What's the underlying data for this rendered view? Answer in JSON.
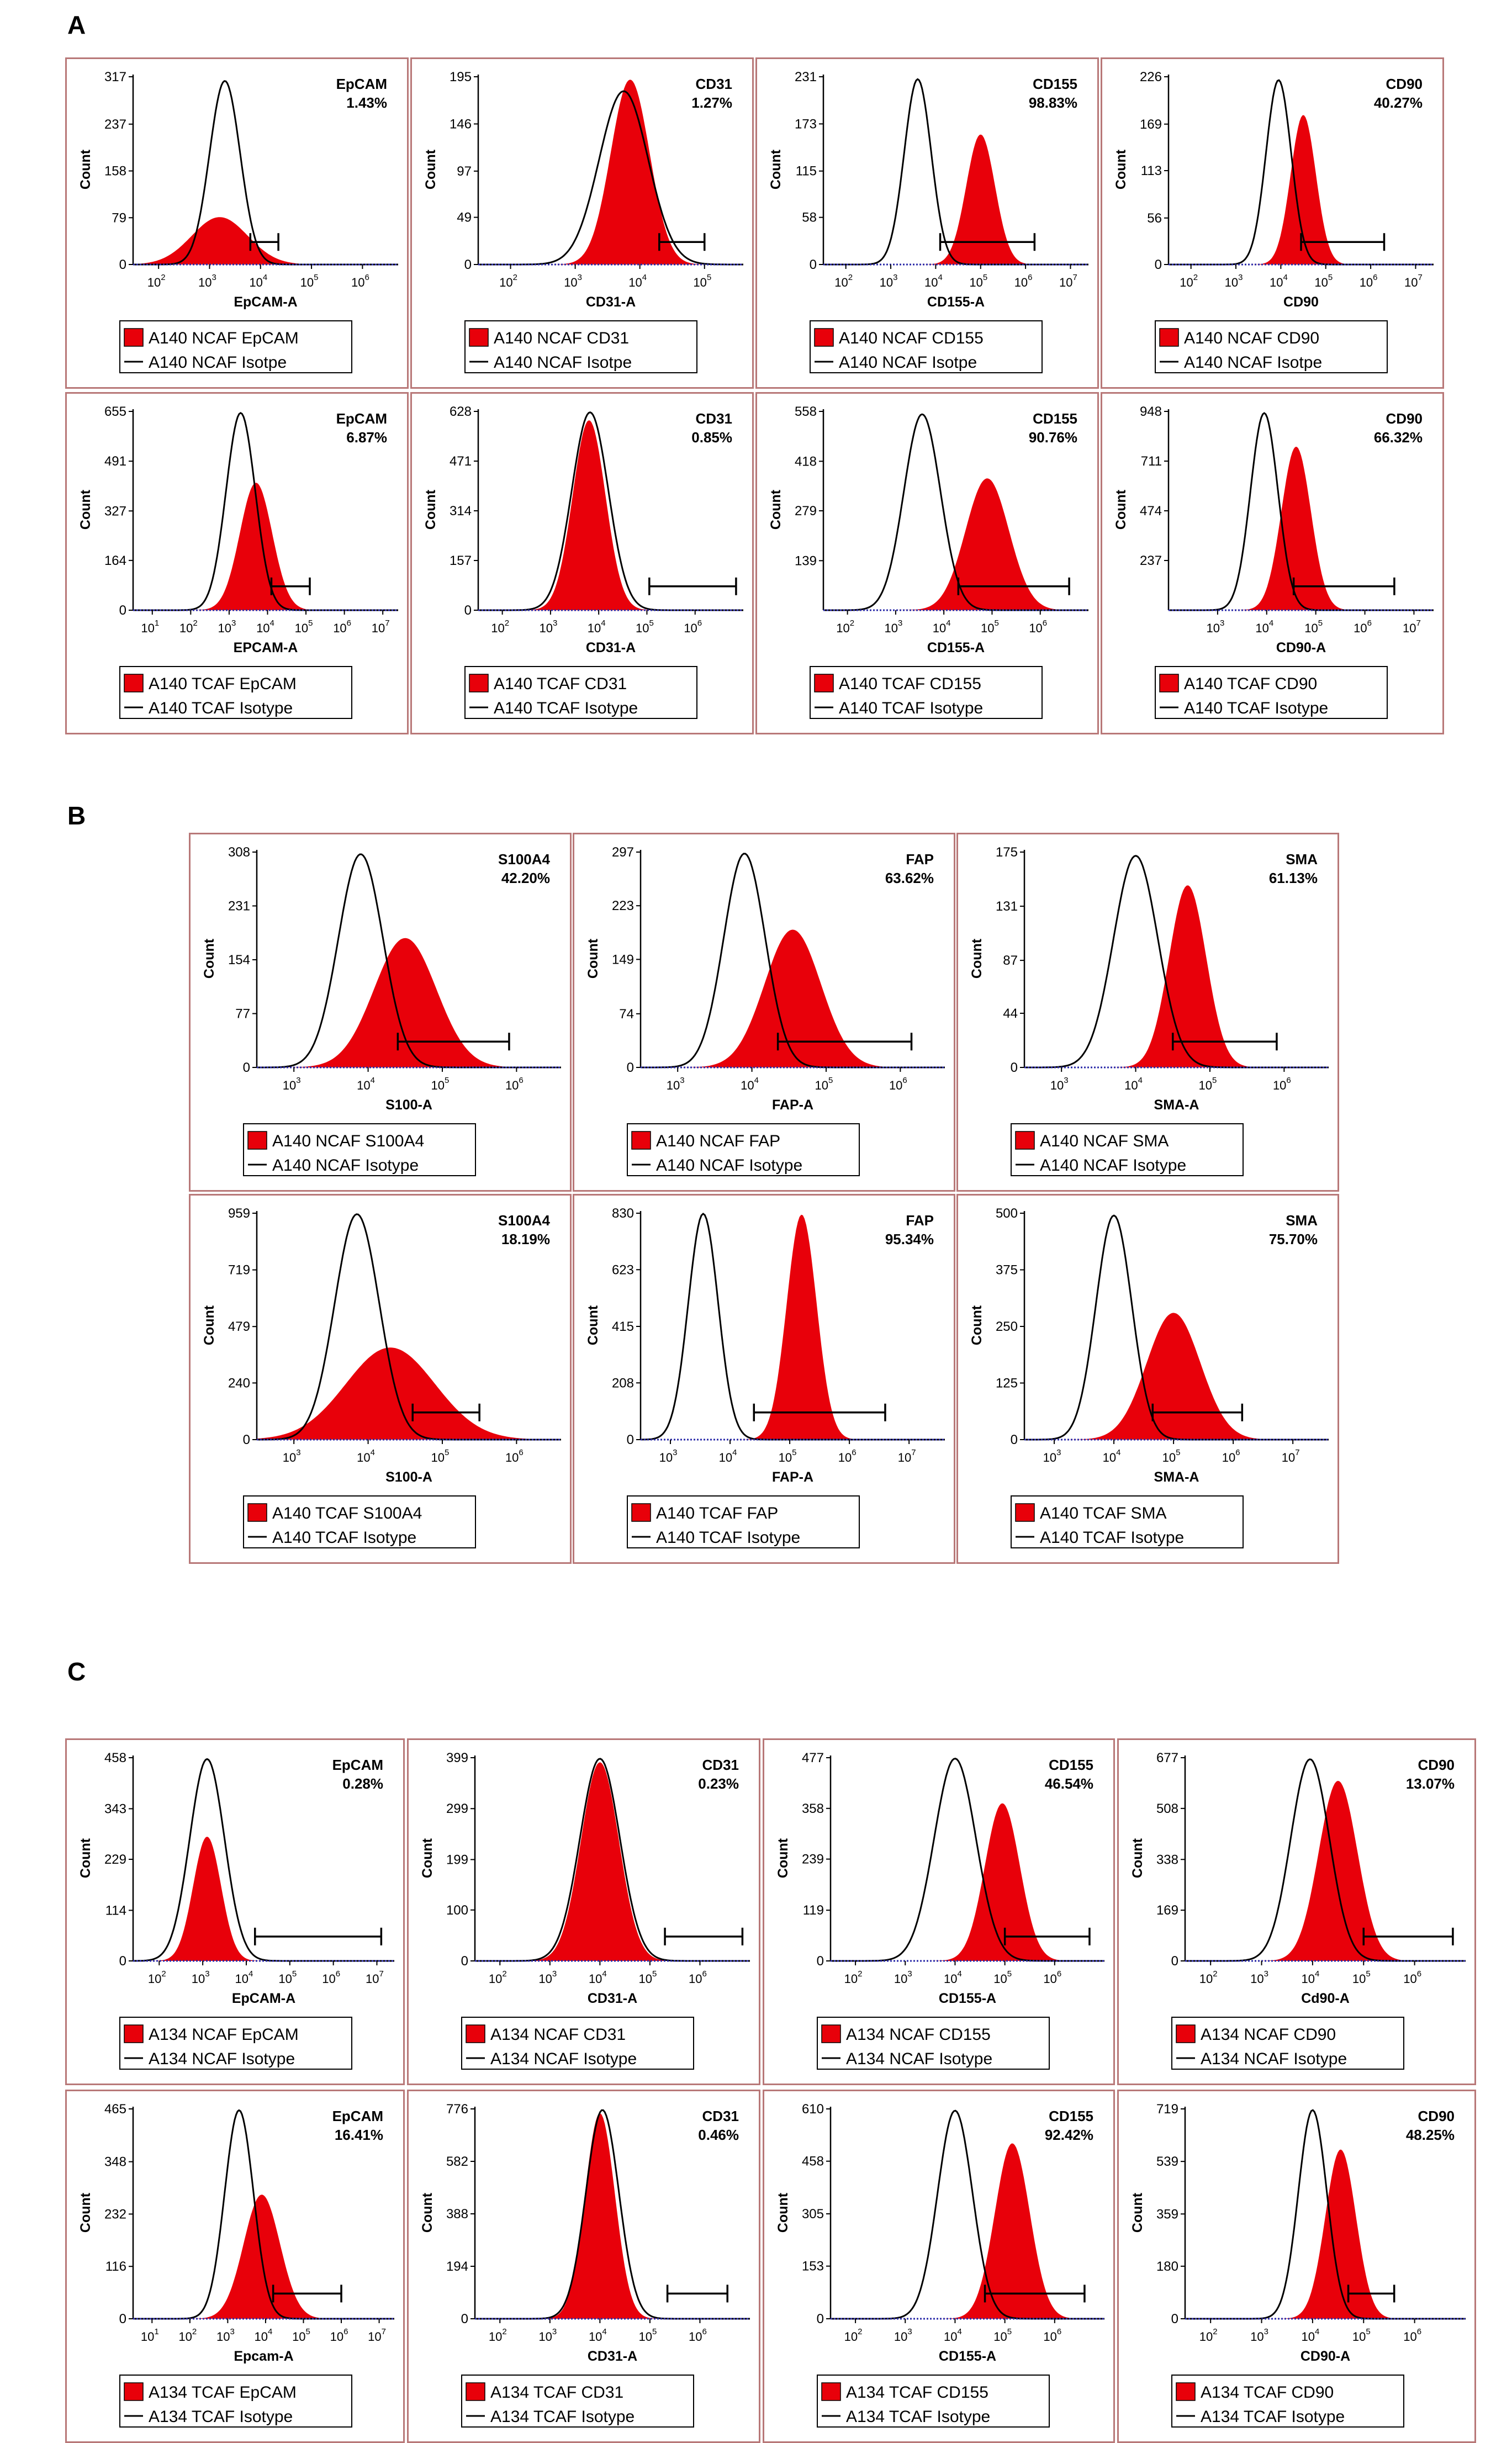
{
  "colors": {
    "filled": "#e8000a",
    "outline": "#000000",
    "panel_border": "#b87878",
    "baseline": "#2a2aa8"
  },
  "section_labels": [
    "A",
    "B",
    "C"
  ],
  "chart_data": [
    {
      "type": "histogram",
      "section": "A",
      "title": "EpCAM",
      "percent": "1.43%",
      "ylabel": "Count",
      "xlabel": "EpCAM-A",
      "yticks": [
        "0",
        "79",
        "158",
        "237",
        "317"
      ],
      "ymax": 317,
      "xdecades": [
        2,
        3,
        4,
        5,
        6
      ],
      "xrange": [
        1.5,
        6.7
      ],
      "series": [
        {
          "name": "A140 NCAF EpCAM",
          "style": "filled",
          "center": 3.2,
          "width": 0.55,
          "peak": 80
        },
        {
          "name": "A140 NCAF Isotpe",
          "style": "line",
          "center": 3.3,
          "width": 0.3,
          "peak": 310
        }
      ],
      "gate": [
        3.8,
        4.35
      ]
    },
    {
      "type": "histogram",
      "section": "A",
      "title": "CD31",
      "percent": "1.27%",
      "ylabel": "Count",
      "xlabel": "CD31-A",
      "yticks": [
        "0",
        "49",
        "97",
        "146",
        "195"
      ],
      "ymax": 195,
      "xdecades": [
        2,
        3,
        4,
        5
      ],
      "xrange": [
        1.5,
        5.6
      ],
      "series": [
        {
          "name": "A140 NCAF CD31",
          "style": "filled",
          "center": 3.85,
          "width": 0.3,
          "peak": 192
        },
        {
          "name": "A140 NCAF Isotpe",
          "style": "line",
          "center": 3.75,
          "width": 0.38,
          "peak": 180
        }
      ],
      "gate": [
        4.3,
        5.0
      ]
    },
    {
      "type": "histogram",
      "section": "A",
      "title": "CD155",
      "percent": "98.83%",
      "ylabel": "Count",
      "xlabel": "CD155-A",
      "yticks": [
        "0",
        "58",
        "115",
        "173",
        "231"
      ],
      "ymax": 231,
      "xdecades": [
        2,
        3,
        4,
        5,
        6,
        7
      ],
      "xrange": [
        1.5,
        7.4
      ],
      "series": [
        {
          "name": "A140 NCAF CD155",
          "style": "filled",
          "center": 5.0,
          "width": 0.32,
          "peak": 160
        },
        {
          "name": "A140 NCAF Isotpe",
          "style": "line",
          "center": 3.6,
          "width": 0.3,
          "peak": 228
        }
      ],
      "gate": [
        4.1,
        6.2
      ]
    },
    {
      "type": "histogram",
      "section": "A",
      "title": "CD90",
      "percent": "40.27%",
      "ylabel": "Count",
      "xlabel": "CD90",
      "yticks": [
        "0",
        "56",
        "113",
        "169",
        "226"
      ],
      "ymax": 226,
      "xdecades": [
        2,
        3,
        4,
        5,
        6,
        7
      ],
      "xrange": [
        1.5,
        7.4
      ],
      "series": [
        {
          "name": "A140 NCAF CD90",
          "style": "filled",
          "center": 4.5,
          "width": 0.28,
          "peak": 180
        },
        {
          "name": "A140 NCAF Isotpe",
          "style": "line",
          "center": 3.95,
          "width": 0.28,
          "peak": 222
        }
      ],
      "gate": [
        4.45,
        6.3
      ]
    },
    {
      "type": "histogram",
      "section": "A",
      "title": "EpCAM",
      "percent": "6.87%",
      "ylabel": "Count",
      "xlabel": "EPCAM-A",
      "yticks": [
        "0",
        "164",
        "327",
        "491",
        "655"
      ],
      "ymax": 655,
      "xdecades": [
        1,
        2,
        3,
        4,
        5,
        6,
        7
      ],
      "xrange": [
        0.5,
        7.4
      ],
      "series": [
        {
          "name": "A140 TCAF EpCAM",
          "style": "filled",
          "center": 3.7,
          "width": 0.42,
          "peak": 420
        },
        {
          "name": "A140 TCAF Isotype",
          "style": "line",
          "center": 3.3,
          "width": 0.38,
          "peak": 650
        }
      ],
      "gate": [
        4.1,
        5.1
      ]
    },
    {
      "type": "histogram",
      "section": "A",
      "title": "CD31",
      "percent": "0.85%",
      "ylabel": "Count",
      "xlabel": "CD31-A",
      "yticks": [
        "0",
        "157",
        "314",
        "471",
        "628"
      ],
      "ymax": 628,
      "xdecades": [
        2,
        3,
        4,
        5,
        6
      ],
      "xrange": [
        1.5,
        7.0
      ],
      "series": [
        {
          "name": "A140 TCAF CD31",
          "style": "filled",
          "center": 3.8,
          "width": 0.34,
          "peak": 600
        },
        {
          "name": "A140 TCAF Isotype",
          "style": "line",
          "center": 3.82,
          "width": 0.38,
          "peak": 625
        }
      ],
      "gate": [
        5.05,
        6.85
      ]
    },
    {
      "type": "histogram",
      "section": "A",
      "title": "CD155",
      "percent": "90.76%",
      "ylabel": "Count",
      "xlabel": "CD155-A",
      "yticks": [
        "139",
        "279",
        "418",
        "558"
      ],
      "ymax": 558,
      "xdecades": [
        2,
        3,
        4,
        5,
        6
      ],
      "xrange": [
        1.5,
        7.0
      ],
      "series": [
        {
          "name": "A140 TCAF CD155",
          "style": "filled",
          "center": 4.9,
          "width": 0.45,
          "peak": 370
        },
        {
          "name": "A140 TCAF Isotype",
          "style": "line",
          "center": 3.55,
          "width": 0.38,
          "peak": 550
        }
      ],
      "gate": [
        4.3,
        6.6
      ]
    },
    {
      "type": "histogram",
      "section": "A",
      "title": "CD90",
      "percent": "66.32%",
      "ylabel": "Count",
      "xlabel": "CD90-A",
      "yticks": [
        "237",
        "474",
        "711",
        "948"
      ],
      "ymax": 948,
      "xdecades": [
        3,
        4,
        5,
        6,
        7
      ],
      "xrange": [
        2.0,
        7.4
      ],
      "series": [
        {
          "name": "A140 TCAF CD90",
          "style": "filled",
          "center": 4.6,
          "width": 0.3,
          "peak": 780
        },
        {
          "name": "A140 TCAF Isotype",
          "style": "line",
          "center": 3.95,
          "width": 0.28,
          "peak": 940
        }
      ],
      "gate": [
        4.55,
        6.6
      ]
    },
    {
      "type": "histogram",
      "section": "B",
      "title": "S100A4",
      "percent": "42.20%",
      "ylabel": "Count",
      "xlabel": "S100-A",
      "yticks": [
        "0",
        "77",
        "154",
        "231",
        "308"
      ],
      "ymax": 308,
      "xdecades": [
        3,
        4,
        5,
        6
      ],
      "xrange": [
        2.5,
        6.6
      ],
      "series": [
        {
          "name": "A140 NCAF S100A4",
          "style": "filled",
          "center": 4.5,
          "width": 0.42,
          "peak": 185
        },
        {
          "name": "A140 NCAF Isotype",
          "style": "line",
          "center": 3.9,
          "width": 0.3,
          "peak": 305
        }
      ],
      "gate": [
        4.4,
        5.9
      ]
    },
    {
      "type": "histogram",
      "section": "B",
      "title": "FAP",
      "percent": "63.62%",
      "ylabel": "Count",
      "xlabel": "FAP-A",
      "yticks": [
        "0",
        "74",
        "149",
        "223",
        "297"
      ],
      "ymax": 297,
      "xdecades": [
        3,
        4,
        5,
        6
      ],
      "xrange": [
        2.5,
        6.6
      ],
      "series": [
        {
          "name": "A140 NCAF FAP",
          "style": "filled",
          "center": 4.55,
          "width": 0.38,
          "peak": 190
        },
        {
          "name": "A140 NCAF Isotype",
          "style": "line",
          "center": 3.9,
          "width": 0.28,
          "peak": 295
        }
      ],
      "gate": [
        4.35,
        6.15
      ]
    },
    {
      "type": "histogram",
      "section": "B",
      "title": "SMA",
      "percent": "61.13%",
      "ylabel": "Count",
      "xlabel": "SMA-A",
      "yticks": [
        "0",
        "44",
        "87",
        "131",
        "175"
      ],
      "ymax": 175,
      "xdecades": [
        3,
        4,
        5,
        6
      ],
      "xrange": [
        2.5,
        6.6
      ],
      "series": [
        {
          "name": "A140 NCAF SMA",
          "style": "filled",
          "center": 4.7,
          "width": 0.25,
          "peak": 148
        },
        {
          "name": "A140 NCAF Isotype",
          "style": "line",
          "center": 4.0,
          "width": 0.3,
          "peak": 172
        }
      ],
      "gate": [
        4.5,
        5.9
      ]
    },
    {
      "type": "histogram",
      "section": "B",
      "title": "S100A4",
      "percent": "18.19%",
      "ylabel": "Count",
      "xlabel": "S100-A",
      "yticks": [
        "0",
        "240",
        "479",
        "719",
        "959"
      ],
      "ymax": 959,
      "xdecades": [
        3,
        4,
        5,
        6
      ],
      "xrange": [
        2.5,
        6.6
      ],
      "series": [
        {
          "name": "A140 TCAF S100A4",
          "style": "filled",
          "center": 4.3,
          "width": 0.6,
          "peak": 390
        },
        {
          "name": "A140 TCAF Isotype",
          "style": "line",
          "center": 3.85,
          "width": 0.3,
          "peak": 955
        }
      ],
      "gate": [
        4.6,
        5.5
      ]
    },
    {
      "type": "histogram",
      "section": "B",
      "title": "FAP",
      "percent": "95.34%",
      "ylabel": "Count",
      "xlabel": "FAP-A",
      "yticks": [
        "0",
        "208",
        "415",
        "623",
        "830"
      ],
      "ymax": 830,
      "xdecades": [
        3,
        4,
        5,
        6,
        7
      ],
      "xrange": [
        2.5,
        7.6
      ],
      "series": [
        {
          "name": "A140 TCAF FAP",
          "style": "filled",
          "center": 5.2,
          "width": 0.25,
          "peak": 825
        },
        {
          "name": "A140 TCAF Isotype",
          "style": "line",
          "center": 3.55,
          "width": 0.25,
          "peak": 828
        }
      ],
      "gate": [
        4.4,
        6.6
      ]
    },
    {
      "type": "histogram",
      "section": "B",
      "title": "SMA",
      "percent": "75.70%",
      "ylabel": "Count",
      "xlabel": "SMA-A",
      "yticks": [
        "0",
        "125",
        "250",
        "375",
        "500"
      ],
      "ymax": 500,
      "xdecades": [
        3,
        4,
        5,
        6,
        7
      ],
      "xrange": [
        2.5,
        7.6
      ],
      "series": [
        {
          "name": "A140 TCAF SMA",
          "style": "filled",
          "center": 5.0,
          "width": 0.45,
          "peak": 280
        },
        {
          "name": "A140 TCAF Isotype",
          "style": "line",
          "center": 4.0,
          "width": 0.3,
          "peak": 495
        }
      ],
      "gate": [
        4.65,
        6.15
      ]
    },
    {
      "type": "histogram",
      "section": "C",
      "title": "EpCAM",
      "percent": "0.28%",
      "ylabel": "Count",
      "xlabel": "EpCAM-A",
      "yticks": [
        "0",
        "114",
        "229",
        "343",
        "458"
      ],
      "ymax": 458,
      "xdecades": [
        2,
        3,
        4,
        5,
        6,
        7
      ],
      "xrange": [
        1.4,
        7.4
      ],
      "series": [
        {
          "name": "A134 NCAF EpCAM",
          "style": "filled",
          "center": 3.1,
          "width": 0.32,
          "peak": 280
        },
        {
          "name": "A134 NCAF Isotype",
          "style": "line",
          "center": 3.1,
          "width": 0.4,
          "peak": 455
        }
      ],
      "gate": [
        4.2,
        7.1
      ]
    },
    {
      "type": "histogram",
      "section": "C",
      "title": "CD31",
      "percent": "0.23%",
      "ylabel": "Count",
      "xlabel": "CD31-A",
      "yticks": [
        "0",
        "100",
        "199",
        "299",
        "399"
      ],
      "ymax": 399,
      "xdecades": [
        2,
        3,
        4,
        5,
        6
      ],
      "xrange": [
        1.5,
        7.0
      ],
      "series": [
        {
          "name": "A134 NCAF CD31",
          "style": "filled",
          "center": 4.0,
          "width": 0.38,
          "peak": 390
        },
        {
          "name": "A134 NCAF Isotype",
          "style": "line",
          "center": 4.0,
          "width": 0.4,
          "peak": 397
        }
      ],
      "gate": [
        5.3,
        6.85
      ]
    },
    {
      "type": "histogram",
      "section": "C",
      "title": "CD155",
      "percent": "46.54%",
      "ylabel": "Count",
      "xlabel": "CD155-A",
      "yticks": [
        "0",
        "119",
        "239",
        "358",
        "477"
      ],
      "ymax": 477,
      "xdecades": [
        2,
        3,
        4,
        5,
        6
      ],
      "xrange": [
        1.5,
        7.0
      ],
      "series": [
        {
          "name": "A134 NCAF CD155",
          "style": "filled",
          "center": 4.95,
          "width": 0.35,
          "peak": 370
        },
        {
          "name": "A134 NCAF Isotype",
          "style": "line",
          "center": 4.0,
          "width": 0.42,
          "peak": 475
        }
      ],
      "gate": [
        5.0,
        6.7
      ]
    },
    {
      "type": "histogram",
      "section": "C",
      "title": "CD90",
      "percent": "13.07%",
      "ylabel": "Count",
      "xlabel": "Cd90-A",
      "yticks": [
        "0",
        "169",
        "338",
        "508",
        "677"
      ],
      "ymax": 677,
      "xdecades": [
        2,
        3,
        4,
        5,
        6
      ],
      "xrange": [
        1.5,
        7.0
      ],
      "series": [
        {
          "name": "A134 NCAF CD90",
          "style": "filled",
          "center": 4.5,
          "width": 0.38,
          "peak": 600
        },
        {
          "name": "A134 NCAF Isotype",
          "style": "line",
          "center": 3.95,
          "width": 0.38,
          "peak": 672
        }
      ],
      "gate": [
        5.0,
        6.75
      ]
    },
    {
      "type": "histogram",
      "section": "C",
      "title": "EpCAM",
      "percent": "16.41%",
      "ylabel": "Count",
      "xlabel": "Epcam-A",
      "yticks": [
        "0",
        "116",
        "232",
        "348",
        "465"
      ],
      "ymax": 465,
      "xdecades": [
        1,
        2,
        3,
        4,
        5,
        6,
        7
      ],
      "xrange": [
        0.5,
        7.4
      ],
      "series": [
        {
          "name": "A134 TCAF EpCAM",
          "style": "filled",
          "center": 3.9,
          "width": 0.48,
          "peak": 275
        },
        {
          "name": "A134 TCAF Isotype",
          "style": "line",
          "center": 3.3,
          "width": 0.38,
          "peak": 462
        }
      ],
      "gate": [
        4.2,
        6.0
      ]
    },
    {
      "type": "histogram",
      "section": "C",
      "title": "CD31",
      "percent": "0.46%",
      "ylabel": "Count",
      "xlabel": "CD31-A",
      "yticks": [
        "0",
        "194",
        "388",
        "582",
        "776"
      ],
      "ymax": 776,
      "xdecades": [
        2,
        3,
        4,
        5,
        6
      ],
      "xrange": [
        1.5,
        7.0
      ],
      "series": [
        {
          "name": "A134 TCAF CD31",
          "style": "filled",
          "center": 4.0,
          "width": 0.3,
          "peak": 760
        },
        {
          "name": "A134 TCAF Isotype",
          "style": "line",
          "center": 4.05,
          "width": 0.33,
          "peak": 772
        }
      ],
      "gate": [
        5.35,
        6.55
      ]
    },
    {
      "type": "histogram",
      "section": "C",
      "title": "CD155",
      "percent": "92.42%",
      "ylabel": "Count",
      "xlabel": "CD155-A",
      "yticks": [
        "0",
        "153",
        "305",
        "458",
        "610"
      ],
      "ymax": 610,
      "xdecades": [
        2,
        3,
        4,
        5,
        6
      ],
      "xrange": [
        1.5,
        7.0
      ],
      "series": [
        {
          "name": "A134 TCAF CD155",
          "style": "filled",
          "center": 5.15,
          "width": 0.35,
          "peak": 510
        },
        {
          "name": "A134 TCAF Isotype",
          "style": "line",
          "center": 4.0,
          "width": 0.35,
          "peak": 605
        }
      ],
      "gate": [
        4.6,
        6.6
      ]
    },
    {
      "type": "histogram",
      "section": "C",
      "title": "CD90",
      "percent": "48.25%",
      "ylabel": "Count",
      "xlabel": "CD90-A",
      "yticks": [
        "0",
        "180",
        "359",
        "539",
        "719"
      ],
      "ymax": 719,
      "xdecades": [
        2,
        3,
        4,
        5,
        6
      ],
      "xrange": [
        1.5,
        7.0
      ],
      "series": [
        {
          "name": "A134 TCAF CD90",
          "style": "filled",
          "center": 4.55,
          "width": 0.3,
          "peak": 580
        },
        {
          "name": "A134 TCAF Isotype",
          "style": "line",
          "center": 4.0,
          "width": 0.28,
          "peak": 715
        }
      ],
      "gate": [
        4.7,
        5.6
      ]
    }
  ]
}
